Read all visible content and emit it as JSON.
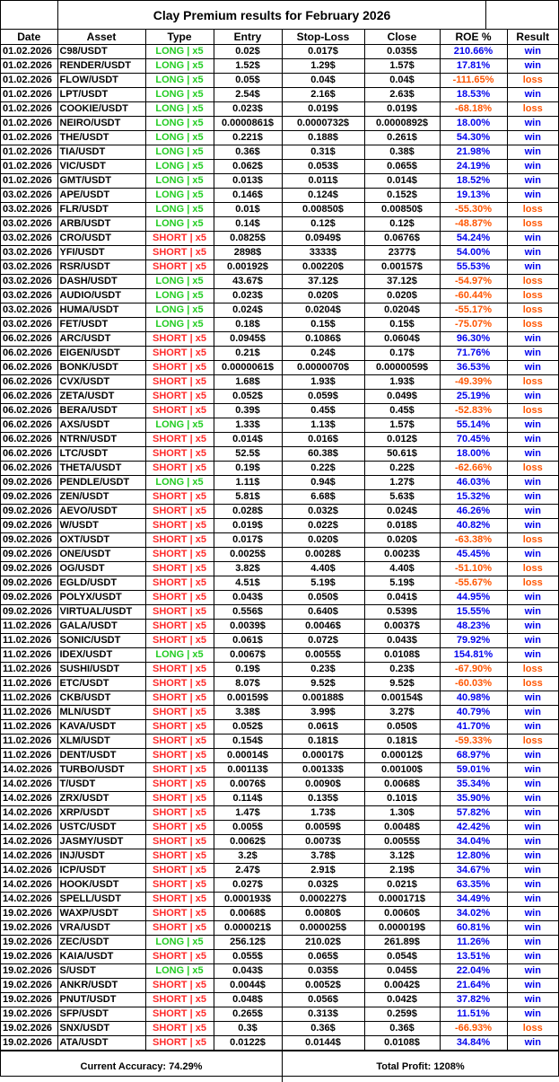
{
  "title": "Clay Premium results for February 2026",
  "headers": [
    "Date",
    "Asset",
    "Type",
    "Entry",
    "Stop-Loss",
    "Close",
    "ROE %",
    "Result"
  ],
  "colors": {
    "long": "#22cc22",
    "short": "#ff2a2a",
    "win": "#0000ee",
    "loss": "#ff5500"
  },
  "rows": [
    [
      "01.02.2026",
      "C98/USDT",
      "LONG | x5",
      "0.02$",
      "0.017$",
      "0.035$",
      "210.66%",
      "win"
    ],
    [
      "01.02.2026",
      "RENDER/USDT",
      "LONG | x5",
      "1.52$",
      "1.29$",
      "1.57$",
      "17.81%",
      "win"
    ],
    [
      "01.02.2026",
      "FLOW/USDT",
      "LONG | x5",
      "0.05$",
      "0.04$",
      "0.04$",
      "-111.65%",
      "loss"
    ],
    [
      "01.02.2026",
      "LPT/USDT",
      "LONG | x5",
      "2.54$",
      "2.16$",
      "2.63$",
      "18.53%",
      "win"
    ],
    [
      "01.02.2026",
      "COOKIE/USDT",
      "LONG | x5",
      "0.023$",
      "0.019$",
      "0.019$",
      "-68.18%",
      "loss"
    ],
    [
      "01.02.2026",
      "NEIRO/USDT",
      "LONG | x5",
      "0.0000861$",
      "0.0000732$",
      "0.0000892$",
      "18.00%",
      "win"
    ],
    [
      "01.02.2026",
      "THE/USDT",
      "LONG | x5",
      "0.221$",
      "0.188$",
      "0.261$",
      "54.30%",
      "win"
    ],
    [
      "01.02.2026",
      "TIA/USDT",
      "LONG | x5",
      "0.36$",
      "0.31$",
      "0.38$",
      "21.98%",
      "win"
    ],
    [
      "01.02.2026",
      "VIC/USDT",
      "LONG | x5",
      "0.062$",
      "0.053$",
      "0.065$",
      "24.19%",
      "win"
    ],
    [
      "01.02.2026",
      "GMT/USDT",
      "LONG | x5",
      "0.013$",
      "0.011$",
      "0.014$",
      "18.52%",
      "win"
    ],
    [
      "03.02.2026",
      "APE/USDT",
      "LONG | x5",
      "0.146$",
      "0.124$",
      "0.152$",
      "19.13%",
      "win"
    ],
    [
      "03.02.2026",
      "FLR/USDT",
      "LONG | x5",
      "0.01$",
      "0.00850$",
      "0.00850$",
      "-55.30%",
      "loss"
    ],
    [
      "03.02.2026",
      "ARB/USDT",
      "LONG | x5",
      "0.14$",
      "0.12$",
      "0.12$",
      "-48.87%",
      "loss"
    ],
    [
      "03.02.2026",
      "CRO/USDT",
      "SHORT | x5",
      "0.0825$",
      "0.0949$",
      "0.0676$",
      "54.24%",
      "win"
    ],
    [
      "03.02.2026",
      "YFI/USDT",
      "SHORT | x5",
      "2898$",
      "3333$",
      "2377$",
      "54.00%",
      "win"
    ],
    [
      "03.02.2026",
      "RSR/USDT",
      "SHORT | x5",
      "0.00192$",
      "0.00220$",
      "0.00157$",
      "55.53%",
      "win"
    ],
    [
      "03.02.2026",
      "DASH/USDT",
      "LONG | x5",
      "43.67$",
      "37.12$",
      "37.12$",
      "-54.97%",
      "loss"
    ],
    [
      "03.02.2026",
      "AUDIO/USDT",
      "LONG | x5",
      "0.023$",
      "0.020$",
      "0.020$",
      "-60.44%",
      "loss"
    ],
    [
      "03.02.2026",
      "HUMA/USDT",
      "LONG | x5",
      "0.024$",
      "0.0204$",
      "0.0204$",
      "-55.17%",
      "loss"
    ],
    [
      "03.02.2026",
      "FET/USDT",
      "LONG | x5",
      "0.18$",
      "0.15$",
      "0.15$",
      "-75.07%",
      "loss"
    ],
    [
      "06.02.2026",
      "ARC/USDT",
      "SHORT | x5",
      "0.0945$",
      "0.1086$",
      "0.0604$",
      "96.30%",
      "win"
    ],
    [
      "06.02.2026",
      "EIGEN/USDT",
      "SHORT | x5",
      "0.21$",
      "0.24$",
      "0.17$",
      "71.76%",
      "win"
    ],
    [
      "06.02.2026",
      "BONK/USDT",
      "SHORT | x5",
      "0.0000061$",
      "0.0000070$",
      "0.0000059$",
      "36.53%",
      "win"
    ],
    [
      "06.02.2026",
      "CVX/USDT",
      "SHORT | x5",
      "1.68$",
      "1.93$",
      "1.93$",
      "-49.39%",
      "loss"
    ],
    [
      "06.02.2026",
      "ZETA/USDT",
      "SHORT | x5",
      "0.052$",
      "0.059$",
      "0.049$",
      "25.19%",
      "win"
    ],
    [
      "06.02.2026",
      "BERA/USDT",
      "SHORT | x5",
      "0.39$",
      "0.45$",
      "0.45$",
      "-52.83%",
      "loss"
    ],
    [
      "06.02.2026",
      "AXS/USDT",
      "LONG | x5",
      "1.33$",
      "1.13$",
      "1.57$",
      "55.14%",
      "win"
    ],
    [
      "06.02.2026",
      "NTRN/USDT",
      "SHORT | x5",
      "0.014$",
      "0.016$",
      "0.012$",
      "70.45%",
      "win"
    ],
    [
      "06.02.2026",
      "LTC/USDT",
      "SHORT | x5",
      "52.5$",
      "60.38$",
      "50.61$",
      "18.00%",
      "win"
    ],
    [
      "06.02.2026",
      "THETA/USDT",
      "SHORT | x5",
      "0.19$",
      "0.22$",
      "0.22$",
      "-62.66%",
      "loss"
    ],
    [
      "09.02.2026",
      "PENDLE/USDT",
      "LONG | x5",
      "1.11$",
      "0.94$",
      "1.27$",
      "46.03%",
      "win"
    ],
    [
      "09.02.2026",
      "ZEN/USDT",
      "SHORT | x5",
      "5.81$",
      "6.68$",
      "5.63$",
      "15.32%",
      "win"
    ],
    [
      "09.02.2026",
      "AEVO/USDT",
      "SHORT | x5",
      "0.028$",
      "0.032$",
      "0.024$",
      "46.26%",
      "win"
    ],
    [
      "09.02.2026",
      "W/USDT",
      "SHORT | x5",
      "0.019$",
      "0.022$",
      "0.018$",
      "40.82%",
      "win"
    ],
    [
      "09.02.2026",
      "OXT/USDT",
      "SHORT | x5",
      "0.017$",
      "0.020$",
      "0.020$",
      "-63.38%",
      "loss"
    ],
    [
      "09.02.2026",
      "ONE/USDT",
      "SHORT | x5",
      "0.0025$",
      "0.0028$",
      "0.0023$",
      "45.45%",
      "win"
    ],
    [
      "09.02.2026",
      "OG/USDT",
      "SHORT | x5",
      "3.82$",
      "4.40$",
      "4.40$",
      "-51.10%",
      "loss"
    ],
    [
      "09.02.2026",
      "EGLD/USDT",
      "SHORT | x5",
      "4.51$",
      "5.19$",
      "5.19$",
      "-55.67%",
      "loss"
    ],
    [
      "09.02.2026",
      "POLYX/USDT",
      "SHORT | x5",
      "0.043$",
      "0.050$",
      "0.041$",
      "44.95%",
      "win"
    ],
    [
      "09.02.2026",
      "VIRTUAL/USDT",
      "SHORT | x5",
      "0.556$",
      "0.640$",
      "0.539$",
      "15.55%",
      "win"
    ],
    [
      "11.02.2026",
      "GALA/USDT",
      "SHORT | x5",
      "0.0039$",
      "0.0046$",
      "0.0037$",
      "48.23%",
      "win"
    ],
    [
      "11.02.2026",
      "SONIC/USDT",
      "SHORT | x5",
      "0.061$",
      "0.072$",
      "0.043$",
      "79.92%",
      "win"
    ],
    [
      "11.02.2026",
      "IDEX/USDT",
      "LONG | x5",
      "0.0067$",
      "0.0055$",
      "0.0108$",
      "154.81%",
      "win"
    ],
    [
      "11.02.2026",
      "SUSHI/USDT",
      "SHORT | x5",
      "0.19$",
      "0.23$",
      "0.23$",
      "-67.90%",
      "loss"
    ],
    [
      "11.02.2026",
      "ETC/USDT",
      "SHORT | x5",
      "8.07$",
      "9.52$",
      "9.52$",
      "-60.03%",
      "loss"
    ],
    [
      "11.02.2026",
      "CKB/USDT",
      "SHORT | x5",
      "0.00159$",
      "0.00188$",
      "0.00154$",
      "40.98%",
      "win"
    ],
    [
      "11.02.2026",
      "MLN/USDT",
      "SHORT | x5",
      "3.38$",
      "3.99$",
      "3.27$",
      "40.79%",
      "win"
    ],
    [
      "11.02.2026",
      "KAVA/USDT",
      "SHORT | x5",
      "0.052$",
      "0.061$",
      "0.050$",
      "41.70%",
      "win"
    ],
    [
      "11.02.2026",
      "XLM/USDT",
      "SHORT | x5",
      "0.154$",
      "0.181$",
      "0.181$",
      "-59.33%",
      "loss"
    ],
    [
      "11.02.2026",
      "DENT/USDT",
      "SHORT | x5",
      "0.00014$",
      "0.00017$",
      "0.00012$",
      "68.97%",
      "win"
    ],
    [
      "14.02.2026",
      "TURBO/USDT",
      "SHORT | x5",
      "0.00113$",
      "0.00133$",
      "0.00100$",
      "59.01%",
      "win"
    ],
    [
      "14.02.2026",
      "T/USDT",
      "SHORT | x5",
      "0.0076$",
      "0.0090$",
      "0.0068$",
      "35.34%",
      "win"
    ],
    [
      "14.02.2026",
      "ZRX/USDT",
      "SHORT | x5",
      "0.114$",
      "0.135$",
      "0.101$",
      "35.90%",
      "win"
    ],
    [
      "14.02.2026",
      "XRP/USDT",
      "SHORT | x5",
      "1.47$",
      "1.73$",
      "1.30$",
      "57.82%",
      "win"
    ],
    [
      "14.02.2026",
      "USTC/USDT",
      "SHORT | x5",
      "0.005$",
      "0.0059$",
      "0.0048$",
      "42.42%",
      "win"
    ],
    [
      "14.02.2026",
      "JASMY/USDT",
      "SHORT | x5",
      "0.0062$",
      "0.0073$",
      "0.0055$",
      "34.04%",
      "win"
    ],
    [
      "14.02.2026",
      "INJ/USDT",
      "SHORT | x5",
      "3.2$",
      "3.78$",
      "3.12$",
      "12.80%",
      "win"
    ],
    [
      "14.02.2026",
      "ICP/USDT",
      "SHORT | x5",
      "2.47$",
      "2.91$",
      "2.19$",
      "34.67%",
      "win"
    ],
    [
      "14.02.2026",
      "HOOK/USDT",
      "SHORT | x5",
      "0.027$",
      "0.032$",
      "0.021$",
      "63.35%",
      "win"
    ],
    [
      "14.02.2026",
      "SPELL/USDT",
      "SHORT | x5",
      "0.000193$",
      "0.000227$",
      "0.000171$",
      "34.49%",
      "win"
    ],
    [
      "19.02.2026",
      "WAXP/USDT",
      "SHORT | x5",
      "0.0068$",
      "0.0080$",
      "0.0060$",
      "34.02%",
      "win"
    ],
    [
      "19.02.2026",
      "VRA/USDT",
      "SHORT | x5",
      "0.000021$",
      "0.000025$",
      "0.000019$",
      "60.81%",
      "win"
    ],
    [
      "19.02.2026",
      "ZEC/USDT",
      "LONG | x5",
      "256.12$",
      "210.02$",
      "261.89$",
      "11.26%",
      "win"
    ],
    [
      "19.02.2026",
      "KAIA/USDT",
      "SHORT | x5",
      "0.055$",
      "0.065$",
      "0.054$",
      "13.51%",
      "win"
    ],
    [
      "19.02.2026",
      "S/USDT",
      "LONG | x5",
      "0.043$",
      "0.035$",
      "0.045$",
      "22.04%",
      "win"
    ],
    [
      "19.02.2026",
      "ANKR/USDT",
      "SHORT | x5",
      "0.0044$",
      "0.0052$",
      "0.0042$",
      "21.64%",
      "win"
    ],
    [
      "19.02.2026",
      "PNUT/USDT",
      "SHORT | x5",
      "0.048$",
      "0.056$",
      "0.042$",
      "37.82%",
      "win"
    ],
    [
      "19.02.2026",
      "SFP/USDT",
      "SHORT | x5",
      "0.265$",
      "0.313$",
      "0.259$",
      "11.51%",
      "win"
    ],
    [
      "19.02.2026",
      "SNX/USDT",
      "SHORT | x5",
      "0.3$",
      "0.36$",
      "0.36$",
      "-66.93%",
      "loss"
    ],
    [
      "19.02.2026",
      "ATA/USDT",
      "SHORT | x5",
      "0.0122$",
      "0.0144$",
      "0.0108$",
      "34.84%",
      "win"
    ]
  ],
  "footer": {
    "accuracy": "Current Accuracy: 74.29%",
    "profit": "Total Profit: 1208%"
  }
}
